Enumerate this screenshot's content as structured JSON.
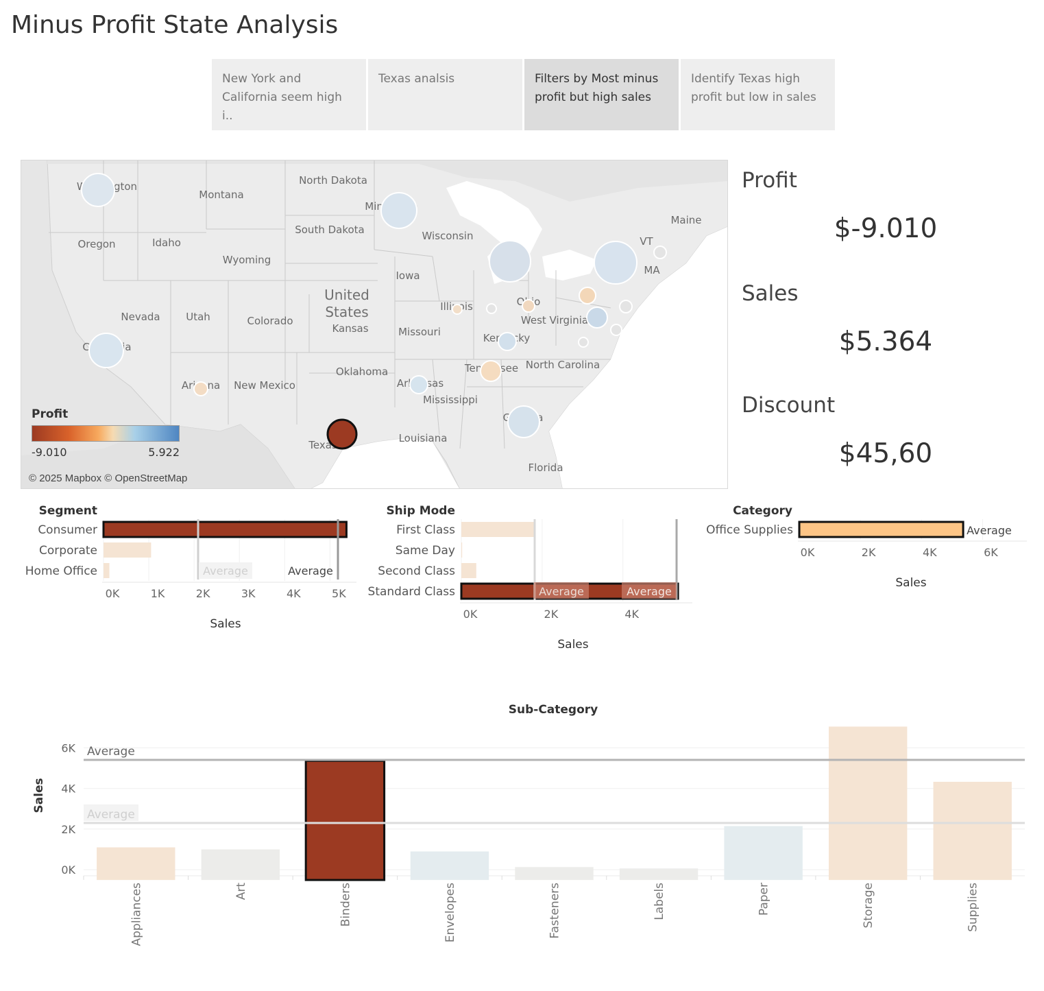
{
  "title": "Minus Profit State Analysis",
  "story_points": [
    {
      "label": "New York and California seem high i.."
    },
    {
      "label": "Texas analsis"
    },
    {
      "label": "Filters by Most minus profit but high sales"
    },
    {
      "label": "Identify Texas high profit but low in sales"
    }
  ],
  "map": {
    "country_label_1": "United",
    "country_label_2": "States",
    "state_labels": [
      "Washington",
      "Montana",
      "North Dakota",
      "Minnesota",
      "Wisconsin",
      "Maine",
      "Oregon",
      "Idaho",
      "South Dakota",
      "Wyoming",
      "Iowa",
      "VT",
      "MA",
      "Nevada",
      "Utah",
      "Colorado",
      "Kansas",
      "Illinois",
      "Ohio",
      "West Virginia",
      "Kentucky",
      "Missouri",
      "California",
      "Oklahoma",
      "Arkansas",
      "Tennessee",
      "North Carolina",
      "Arizona",
      "New Mexico",
      "Mississippi",
      "Georgia",
      "Louisiana",
      "Texas",
      "Florida"
    ],
    "legend_title": "Profit",
    "legend_min": "-9.010",
    "legend_max": "5.922",
    "attribution": "© 2025 Mapbox © OpenStreetMap"
  },
  "kpis": {
    "profit_label": "Profit",
    "profit_value": "$-9.010",
    "sales_label": "Sales",
    "sales_value": "$5.364",
    "discount_label": "Discount",
    "discount_value": "$45,60"
  },
  "chart_data": [
    {
      "type": "bar",
      "orientation": "horizontal",
      "title": "Segment",
      "xlabel": "Sales",
      "categories": [
        "Consumer",
        "Corporate",
        "Home Office"
      ],
      "values": [
        5364,
        1050,
        130
      ],
      "xlim": [
        0,
        5600
      ],
      "ticks": [
        "0K",
        "1K",
        "2K",
        "3K",
        "4K",
        "5K"
      ],
      "reference_lines": [
        "Average",
        "Average"
      ],
      "selected": "Consumer"
    },
    {
      "type": "bar",
      "orientation": "horizontal",
      "title": "Ship Mode",
      "xlabel": "Sales",
      "categories": [
        "First Class",
        "Same Day",
        "Second Class",
        "Standard Class"
      ],
      "values": [
        1800,
        20,
        370,
        5364
      ],
      "xlim": [
        0,
        5600
      ],
      "ticks": [
        "0K",
        "2K",
        "4K"
      ],
      "reference_lines": [
        "Average",
        "Average"
      ],
      "selected": "Standard Class"
    },
    {
      "type": "bar",
      "orientation": "horizontal",
      "title": "Category",
      "xlabel": "Sales",
      "categories": [
        "Office Supplies"
      ],
      "values": [
        5364
      ],
      "xlim": [
        0,
        7000
      ],
      "ticks": [
        "0K",
        "2K",
        "4K",
        "6K"
      ],
      "reference_lines": [
        "Average"
      ],
      "selected": "Office Supplies"
    },
    {
      "type": "bar",
      "orientation": "vertical",
      "title": "Sub-Category",
      "ylabel": "Sales",
      "categories": [
        "Appliances",
        "Art",
        "Binders",
        "Envelopes",
        "Fasteners",
        "Labels",
        "Paper",
        "Storage",
        "Supplies"
      ],
      "values": [
        1100,
        1000,
        5364,
        900,
        130,
        60,
        2150,
        7050,
        4330
      ],
      "ylim": [
        -300,
        7200
      ],
      "ticks": [
        "0K",
        "2K",
        "4K",
        "6K"
      ],
      "reference_lines": [
        "Average",
        "Average"
      ],
      "selected": "Binders"
    }
  ],
  "colors": {
    "selected": "#9c3a22",
    "dim_orange": "#f5e4d3",
    "dim_grey": "#ececea",
    "dim_blue": "#e4ecef",
    "category_orange": "#fdc586"
  }
}
